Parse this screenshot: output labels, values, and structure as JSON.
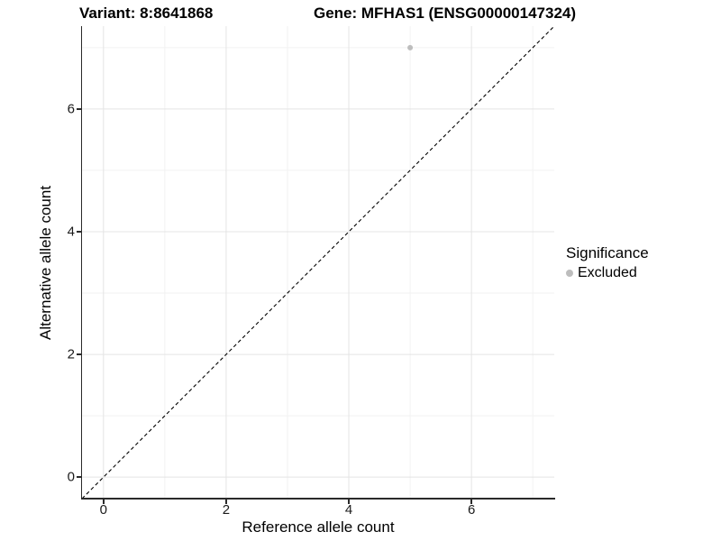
{
  "chart_data": {
    "type": "scatter",
    "titles": [
      "Variant: 8:8641868",
      "Gene: MFHAS1 (ENSG00000147324)"
    ],
    "xlabel": "Reference allele count",
    "ylabel": "Alternative allele count",
    "xlim": [
      -0.35,
      7.35
    ],
    "ylim": [
      -0.35,
      7.35
    ],
    "xticks": [
      0,
      2,
      4,
      6
    ],
    "yticks": [
      0,
      2,
      4,
      6
    ],
    "x_minor_ticks": [
      1,
      3,
      5,
      7
    ],
    "y_minor_ticks": [
      1,
      3,
      5,
      7
    ],
    "grid": "major+minor",
    "points": [
      {
        "x": 5,
        "y": 7,
        "significance": "Excluded",
        "color": "#bdbdbd"
      }
    ],
    "identity_line": {
      "slope": 1,
      "intercept": 0,
      "style": "dashed",
      "color": "#000000"
    },
    "legend": {
      "position": "right",
      "title": "Significance",
      "items": [
        {
          "label": "Excluded",
          "color": "#bdbdbd"
        }
      ]
    },
    "colors": {
      "background": "#ffffff",
      "grid_major": "#e4e4e4",
      "grid_minor": "#f2f2f2",
      "axis_line": "#2a2a2a",
      "point": "#bdbdbd"
    }
  }
}
